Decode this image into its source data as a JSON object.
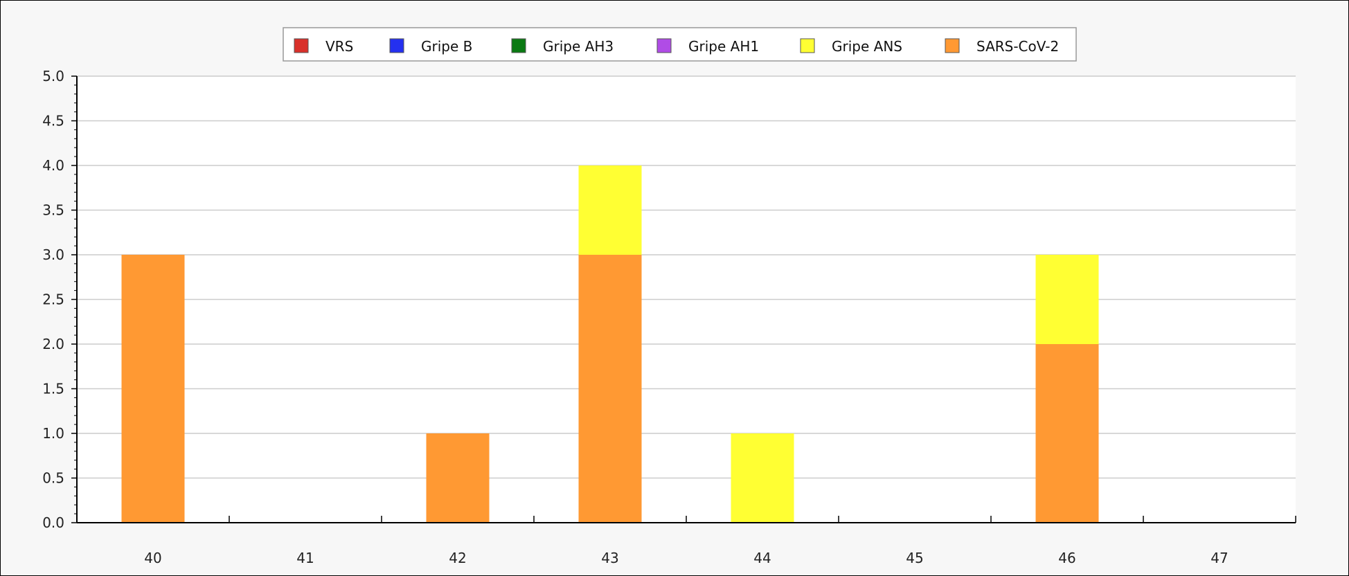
{
  "chart_data": {
    "type": "bar",
    "stacked": true,
    "categories": [
      "40",
      "41",
      "42",
      "43",
      "44",
      "45",
      "46",
      "47"
    ],
    "series": [
      {
        "name": "VRS",
        "color": "#d9302a",
        "values": [
          0,
          0,
          0,
          0,
          0,
          0,
          0,
          0
        ]
      },
      {
        "name": "Gripe B",
        "color": "#2430f0",
        "values": [
          0,
          0,
          0,
          0,
          0,
          0,
          0,
          0
        ]
      },
      {
        "name": "Gripe AH3",
        "color": "#0a7a12",
        "values": [
          0,
          0,
          0,
          0,
          0,
          0,
          0,
          0
        ]
      },
      {
        "name": "Gripe AH1",
        "color": "#b04ce6",
        "values": [
          0,
          0,
          0,
          0,
          0,
          0,
          0,
          0
        ]
      },
      {
        "name": "Gripe ANS",
        "color": "#ffff33",
        "values": [
          0,
          0,
          0,
          1,
          1,
          0,
          1,
          0
        ]
      },
      {
        "name": "SARS-CoV-2",
        "color": "#ff9933",
        "values": [
          3,
          0,
          1,
          3,
          0,
          0,
          2,
          0
        ]
      }
    ],
    "stack_order": [
      "SARS-CoV-2",
      "Gripe ANS",
      "Gripe AH1",
      "Gripe AH3",
      "Gripe B",
      "VRS"
    ],
    "ylim": [
      0,
      5
    ],
    "yticks": [
      "0.0",
      "0.5",
      "1.0",
      "1.5",
      "2.0",
      "2.5",
      "3.0",
      "3.5",
      "4.0",
      "4.5",
      "5.0"
    ],
    "title": "",
    "xlabel": "",
    "ylabel": "",
    "grid": true,
    "legend_position": "top-center"
  }
}
